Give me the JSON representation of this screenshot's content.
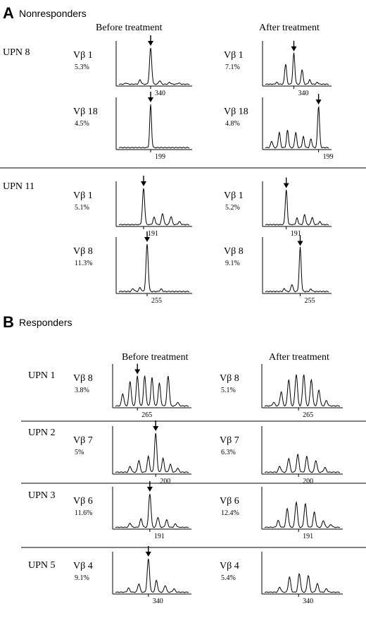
{
  "figure": {
    "panel_a": {
      "letter": "A",
      "title": "Nonresponders",
      "col_before": "Before treatment",
      "col_after": "After treatment"
    },
    "panel_b": {
      "letter": "B",
      "title": "Responders",
      "col_before": "Before treatment",
      "col_after": "After treatment"
    }
  },
  "chart_data": {
    "type": "line",
    "description_of_marks": "spectratype peak profiles (CDR3 length distributions); arrows mark dominant peaks",
    "panels": [
      {
        "panel": "A",
        "title": "Nonresponders",
        "rows": [
          {
            "patient": "UPN 8",
            "vbeta": "Vβ 1",
            "before": {
              "label": "Vβ 1",
              "pct": "5.3%",
              "tick": "340",
              "arrow": true,
              "peaks": [
                [
                  0.1,
                  0.03
                ],
                [
                  0.3,
                  0.12
                ],
                [
                  0.45,
                  1.0
                ],
                [
                  0.58,
                  0.1
                ],
                [
                  0.72,
                  0.05
                ],
                [
                  0.85,
                  0.03
                ]
              ]
            },
            "after": {
              "label": "Vβ 1",
              "pct": "7.1%",
              "tick": "340",
              "arrow": true,
              "peaks": [
                [
                  0.18,
                  0.05
                ],
                [
                  0.32,
                  0.55
                ],
                [
                  0.45,
                  0.85
                ],
                [
                  0.58,
                  0.4
                ],
                [
                  0.7,
                  0.12
                ],
                [
                  0.82,
                  0.05
                ]
              ]
            }
          },
          {
            "patient": "",
            "vbeta": "Vβ 18",
            "before": {
              "label": "Vβ 18",
              "pct": "4.5%",
              "tick": "199",
              "arrow": true,
              "peaks": [
                [
                  0.45,
                  1.0
                ]
              ]
            },
            "after": {
              "label": "Vβ 18",
              "pct": "4.8%",
              "tick": "199",
              "arrow": true,
              "peaks": [
                [
                  0.1,
                  0.15
                ],
                [
                  0.22,
                  0.35
                ],
                [
                  0.35,
                  0.4
                ],
                [
                  0.48,
                  0.35
                ],
                [
                  0.6,
                  0.25
                ],
                [
                  0.72,
                  0.2
                ],
                [
                  0.84,
                  0.95
                ]
              ]
            }
          },
          {
            "patient": "UPN 11",
            "vbeta": "Vβ 1",
            "before": {
              "label": "Vβ 1",
              "pct": "5.1%",
              "tick": "191",
              "arrow": true,
              "peaks": [
                [
                  0.35,
                  1.0
                ],
                [
                  0.5,
                  0.2
                ],
                [
                  0.62,
                  0.3
                ],
                [
                  0.74,
                  0.22
                ],
                [
                  0.86,
                  0.08
                ]
              ]
            },
            "after": {
              "label": "Vβ 1",
              "pct": "5.2%",
              "tick": "191",
              "arrow": true,
              "peaks": [
                [
                  0.33,
                  0.95
                ],
                [
                  0.5,
                  0.18
                ],
                [
                  0.62,
                  0.28
                ],
                [
                  0.74,
                  0.2
                ],
                [
                  0.86,
                  0.08
                ]
              ]
            }
          },
          {
            "patient": "",
            "vbeta": "Vβ 8",
            "before": {
              "label": "Vβ 8",
              "pct": "11.3%",
              "tick": "255",
              "arrow": true,
              "peaks": [
                [
                  0.2,
                  0.06
                ],
                [
                  0.3,
                  0.08
                ],
                [
                  0.4,
                  1.0
                ],
                [
                  0.6,
                  0.05
                ]
              ]
            },
            "after": {
              "label": "Vβ 8",
              "pct": "9.1%",
              "tick": "255",
              "arrow": true,
              "peaks": [
                [
                  0.3,
                  0.06
                ],
                [
                  0.42,
                  0.15
                ],
                [
                  0.55,
                  0.92
                ],
                [
                  0.72,
                  0.05
                ]
              ]
            }
          }
        ]
      },
      {
        "panel": "B",
        "title": "Responders",
        "rows": [
          {
            "patient": "UPN 1",
            "vbeta": "Vβ 8",
            "before": {
              "label": "Vβ 8",
              "pct": "3.8%",
              "tick": "265",
              "arrow": true,
              "peaks": [
                [
                  0.1,
                  0.35
                ],
                [
                  0.2,
                  0.7
                ],
                [
                  0.3,
                  0.85
                ],
                [
                  0.4,
                  0.85
                ],
                [
                  0.5,
                  0.8
                ],
                [
                  0.6,
                  0.65
                ],
                [
                  0.72,
                  0.85
                ],
                [
                  0.85,
                  0.1
                ]
              ]
            },
            "after": {
              "label": "Vβ 8",
              "pct": "5.1%",
              "tick": "265",
              "arrow": false,
              "peaks": [
                [
                  0.12,
                  0.1
                ],
                [
                  0.22,
                  0.4
                ],
                [
                  0.32,
                  0.75
                ],
                [
                  0.42,
                  0.9
                ],
                [
                  0.52,
                  0.9
                ],
                [
                  0.62,
                  0.75
                ],
                [
                  0.72,
                  0.45
                ],
                [
                  0.82,
                  0.15
                ]
              ]
            }
          },
          {
            "patient": "UPN 2",
            "vbeta": "Vβ 7",
            "before": {
              "label": "Vβ 7",
              "pct": "5%",
              "tick": "200",
              "arrow": true,
              "peaks": [
                [
                  0.2,
                  0.15
                ],
                [
                  0.32,
                  0.3
                ],
                [
                  0.45,
                  0.4
                ],
                [
                  0.55,
                  1.0
                ],
                [
                  0.65,
                  0.35
                ],
                [
                  0.75,
                  0.2
                ],
                [
                  0.85,
                  0.1
                ]
              ]
            },
            "after": {
              "label": "Vβ 7",
              "pct": "6.3%",
              "tick": "200",
              "arrow": false,
              "peaks": [
                [
                  0.2,
                  0.15
                ],
                [
                  0.32,
                  0.35
                ],
                [
                  0.44,
                  0.45
                ],
                [
                  0.56,
                  0.4
                ],
                [
                  0.68,
                  0.3
                ],
                [
                  0.8,
                  0.12
                ]
              ]
            }
          },
          {
            "patient": "UPN 3",
            "vbeta": "Vβ 6",
            "before": {
              "label": "Vβ 6",
              "pct": "11.6%",
              "tick": "191",
              "arrow": true,
              "peaks": [
                [
                  0.2,
                  0.12
                ],
                [
                  0.35,
                  0.25
                ],
                [
                  0.47,
                  1.0
                ],
                [
                  0.58,
                  0.3
                ],
                [
                  0.7,
                  0.22
                ],
                [
                  0.82,
                  0.1
                ]
              ]
            },
            "after": {
              "label": "Vβ 6",
              "pct": "12.4%",
              "tick": "191",
              "arrow": false,
              "peaks": [
                [
                  0.18,
                  0.2
                ],
                [
                  0.3,
                  0.55
                ],
                [
                  0.42,
                  0.75
                ],
                [
                  0.54,
                  0.7
                ],
                [
                  0.66,
                  0.45
                ],
                [
                  0.78,
                  0.2
                ],
                [
                  0.88,
                  0.08
                ]
              ]
            }
          },
          {
            "patient": "UPN 5",
            "vbeta": "Vβ 4",
            "before": {
              "label": "Vβ 4",
              "pct": "9.1%",
              "tick": "340",
              "arrow": true,
              "peaks": [
                [
                  0.18,
                  0.12
                ],
                [
                  0.32,
                  0.25
                ],
                [
                  0.45,
                  1.0
                ],
                [
                  0.56,
                  0.35
                ],
                [
                  0.68,
                  0.2
                ],
                [
                  0.8,
                  0.1
                ]
              ]
            },
            "after": {
              "label": "Vβ 4",
              "pct": "5.4%",
              "tick": "340",
              "arrow": false,
              "peaks": [
                [
                  0.2,
                  0.15
                ],
                [
                  0.33,
                  0.45
                ],
                [
                  0.46,
                  0.55
                ],
                [
                  0.58,
                  0.5
                ],
                [
                  0.7,
                  0.25
                ],
                [
                  0.82,
                  0.1
                ]
              ]
            }
          }
        ]
      }
    ]
  }
}
